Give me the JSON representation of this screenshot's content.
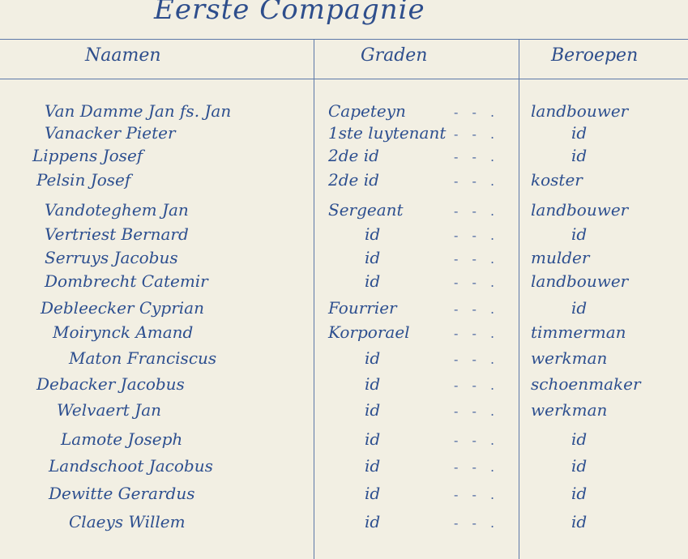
{
  "title": "Eerste Compagnie",
  "headers": {
    "names": "Naamen",
    "ranks": "Graden",
    "occupations": "Beroepen"
  },
  "rows": [
    {
      "name": "Van Damme Jan fs. Jan",
      "rank": "Capeteyn",
      "occupation": "landbouwer"
    },
    {
      "name": "Vanacker Pieter",
      "rank": "1ste luytenant",
      "occupation": "id"
    },
    {
      "name": "Lippens Josef",
      "rank": "2de id",
      "occupation": "id"
    },
    {
      "name": "Pelsin Josef",
      "rank": "2de id",
      "occupation": "koster"
    },
    {
      "name": "Vandoteghem Jan",
      "rank": "Sergeant",
      "occupation": "landbouwer"
    },
    {
      "name": "Vertriest Bernard",
      "rank": "id",
      "occupation": "id"
    },
    {
      "name": "Serruys Jacobus",
      "rank": "id",
      "occupation": "mulder"
    },
    {
      "name": "Dombrecht Catemir",
      "rank": "id",
      "occupation": "landbouwer"
    },
    {
      "name": "Debleecker Cyprian",
      "rank": "Fourrier",
      "occupation": "id"
    },
    {
      "name": "Moirynck Amand",
      "rank": "Korporael",
      "occupation": "timmerman"
    },
    {
      "name": "Maton Franciscus",
      "rank": "id",
      "occupation": "werkman"
    },
    {
      "name": "Debacker Jacobus",
      "rank": "id",
      "occupation": "schoenmaker"
    },
    {
      "name": "Welvaert Jan",
      "rank": "id",
      "occupation": "werkman"
    },
    {
      "name": "Lamote Joseph",
      "rank": "id",
      "occupation": "id"
    },
    {
      "name": "Landschoot Jacobus",
      "rank": "id",
      "occupation": "id"
    },
    {
      "name": "Dewitte Gerardus",
      "rank": "id",
      "occupation": "id"
    },
    {
      "name": "Claeys Willem",
      "rank": "id",
      "occupation": "id"
    }
  ]
}
